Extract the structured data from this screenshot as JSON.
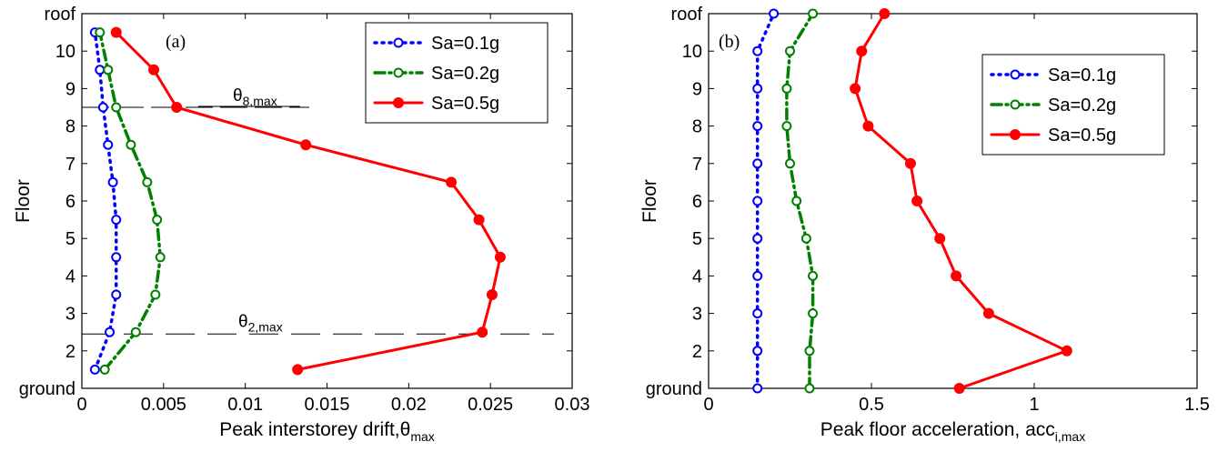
{
  "chart_data": [
    {
      "type": "line",
      "panel_label": "(a)",
      "xlabel": "Peak interstorey drift,",
      "xlabel_symbol": "θ",
      "xlabel_sub": "max",
      "ylabel": "Floor",
      "xlim": [
        0,
        0.03
      ],
      "ylim": [
        1,
        11
      ],
      "xticks": [
        0,
        0.005,
        0.01,
        0.015,
        0.02,
        0.025,
        0.03
      ],
      "xtick_labels": [
        "0",
        "0.005",
        "0.01",
        "0.015",
        "0.02",
        "0.025",
        "0.03"
      ],
      "yticks": [
        1,
        2,
        3,
        4,
        5,
        6,
        7,
        8,
        9,
        10,
        11
      ],
      "ytick_labels": [
        "ground",
        "2",
        "3",
        "4",
        "5",
        "6",
        "7",
        "8",
        "9",
        "10",
        "roof"
      ],
      "legend_position": "top-right",
      "series": [
        {
          "name": "Sa=0.1g",
          "color": "#0000ff",
          "style": "dotted",
          "marker": "open-circle",
          "x": [
            0.0008,
            0.0017,
            0.0021,
            0.0021,
            0.0021,
            0.0019,
            0.0016,
            0.0013,
            0.0011,
            0.0008
          ],
          "y": [
            1.5,
            2.5,
            3.5,
            4.5,
            5.5,
            6.5,
            7.5,
            8.5,
            9.5,
            10.5
          ]
        },
        {
          "name": "Sa=0.2g",
          "color": "#008000",
          "style": "dashdot",
          "marker": "open-circle",
          "x": [
            0.0014,
            0.0033,
            0.0045,
            0.0048,
            0.0046,
            0.004,
            0.003,
            0.0021,
            0.0016,
            0.0011
          ],
          "y": [
            1.5,
            2.5,
            3.5,
            4.5,
            5.5,
            6.5,
            7.5,
            8.5,
            9.5,
            10.5
          ]
        },
        {
          "name": "Sa=0.5g",
          "color": "#ff0000",
          "style": "solid",
          "marker": "filled-circle",
          "x": [
            0.0132,
            0.0245,
            0.0251,
            0.0256,
            0.0243,
            0.0226,
            0.0137,
            0.0058,
            0.0044,
            0.0021
          ],
          "y": [
            1.5,
            2.5,
            3.5,
            4.5,
            5.5,
            6.5,
            7.5,
            8.5,
            9.5,
            10.5
          ]
        }
      ],
      "annotations": [
        {
          "symbol": "θ",
          "sub": "8,max",
          "y": 8.5
        },
        {
          "symbol": "θ",
          "sub": "2,max",
          "y": 2.45
        }
      ]
    },
    {
      "type": "line",
      "panel_label": "(b)",
      "xlabel": "Peak floor acceleration, acc",
      "xlabel_sub": "i,max",
      "ylabel": "Floor",
      "xlim": [
        0,
        1.5
      ],
      "ylim": [
        1,
        11
      ],
      "xticks": [
        0,
        0.5,
        1,
        1.5
      ],
      "xtick_labels": [
        "0",
        "0.5",
        "1",
        "1.5"
      ],
      "yticks": [
        1,
        2,
        3,
        4,
        5,
        6,
        7,
        8,
        9,
        10,
        11
      ],
      "ytick_labels": [
        "ground",
        "2",
        "3",
        "4",
        "5",
        "6",
        "7",
        "8",
        "9",
        "10",
        "roof"
      ],
      "legend_position": "top-right",
      "series": [
        {
          "name": "Sa=0.1g",
          "color": "#0000ff",
          "style": "dotted",
          "marker": "open-circle",
          "x": [
            0.15,
            0.15,
            0.15,
            0.15,
            0.15,
            0.15,
            0.15,
            0.15,
            0.15,
            0.15,
            0.2
          ],
          "y": [
            1,
            2,
            3,
            4,
            5,
            6,
            7,
            8,
            9,
            10,
            11
          ]
        },
        {
          "name": "Sa=0.2g",
          "color": "#008000",
          "style": "dashdot",
          "marker": "open-circle",
          "x": [
            0.31,
            0.31,
            0.32,
            0.32,
            0.3,
            0.27,
            0.25,
            0.24,
            0.24,
            0.25,
            0.32
          ],
          "y": [
            1,
            2,
            3,
            4,
            5,
            6,
            7,
            8,
            9,
            10,
            11
          ]
        },
        {
          "name": "Sa=0.5g",
          "color": "#ff0000",
          "style": "solid",
          "marker": "filled-circle",
          "x": [
            0.77,
            1.1,
            0.86,
            0.76,
            0.71,
            0.64,
            0.62,
            0.49,
            0.45,
            0.47,
            0.54
          ],
          "y": [
            1,
            2,
            3,
            4,
            5,
            6,
            7,
            8,
            9,
            10,
            11
          ]
        }
      ]
    }
  ]
}
